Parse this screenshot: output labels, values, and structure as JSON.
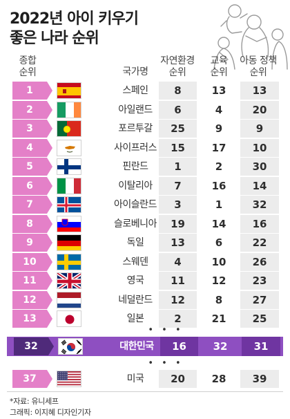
{
  "title_line1": "2022년 아이 키우기",
  "title_line2": "좋은 나라 순위",
  "headers": {
    "rank_line1": "종합",
    "rank_line2": "순위",
    "country": "국가명",
    "env_line1": "자연환경",
    "env_line2": "순위",
    "edu_line1": "교육",
    "edu_line2": "순위",
    "policy_line1": "아동 정책",
    "policy_line2": "순위"
  },
  "ellipsis": "• • •",
  "source": "*자료: 유니세프",
  "credit": "그래픽: 이지혜 디자인기자",
  "colors": {
    "badge": "#e480c8",
    "korea_bar": "#8e4fc1",
    "korea_badge": "#4f2a7a",
    "usa_badge": "#e480c8",
    "cell_shade": "#ececec"
  },
  "chart_data": {
    "type": "table",
    "columns": [
      "종합 순위",
      "국가명",
      "자연환경 순위",
      "교육 순위",
      "아동 정책 순위"
    ],
    "rows": [
      {
        "rank": "1",
        "country": "스페인",
        "env": "8",
        "edu": "13",
        "policy": "13",
        "flag": "spain-flag-icon"
      },
      {
        "rank": "2",
        "country": "아일랜드",
        "env": "6",
        "edu": "4",
        "policy": "20",
        "flag": "ireland-flag-icon"
      },
      {
        "rank": "3",
        "country": "포르투갈",
        "env": "25",
        "edu": "9",
        "policy": "9",
        "flag": "portugal-flag-icon"
      },
      {
        "rank": "4",
        "country": "사이프러스",
        "env": "15",
        "edu": "17",
        "policy": "10",
        "flag": "cyprus-flag-icon"
      },
      {
        "rank": "5",
        "country": "핀란드",
        "env": "1",
        "edu": "2",
        "policy": "30",
        "flag": "finland-flag-icon"
      },
      {
        "rank": "6",
        "country": "이탈리아",
        "env": "7",
        "edu": "16",
        "policy": "14",
        "flag": "italy-flag-icon"
      },
      {
        "rank": "7",
        "country": "아이슬란드",
        "env": "3",
        "edu": "1",
        "policy": "32",
        "flag": "iceland-flag-icon"
      },
      {
        "rank": "8",
        "country": "슬로베니아",
        "env": "19",
        "edu": "14",
        "policy": "16",
        "flag": "slovenia-flag-icon"
      },
      {
        "rank": "9",
        "country": "독일",
        "env": "13",
        "edu": "6",
        "policy": "22",
        "flag": "germany-flag-icon"
      },
      {
        "rank": "10",
        "country": "스웨덴",
        "env": "4",
        "edu": "10",
        "policy": "26",
        "flag": "sweden-flag-icon"
      },
      {
        "rank": "11",
        "country": "영국",
        "env": "11",
        "edu": "12",
        "policy": "23",
        "flag": "uk-flag-icon"
      },
      {
        "rank": "12",
        "country": "네덜란드",
        "env": "12",
        "edu": "8",
        "policy": "27",
        "flag": "netherlands-flag-icon"
      },
      {
        "rank": "13",
        "country": "일본",
        "env": "2",
        "edu": "21",
        "policy": "25",
        "flag": "japan-flag-icon"
      },
      {
        "rank": "32",
        "country": "대한민국",
        "env": "16",
        "edu": "32",
        "policy": "31",
        "flag": "korea-flag-icon"
      },
      {
        "rank": "37",
        "country": "미국",
        "env": "20",
        "edu": "28",
        "policy": "39",
        "flag": "usa-flag-icon"
      }
    ]
  }
}
